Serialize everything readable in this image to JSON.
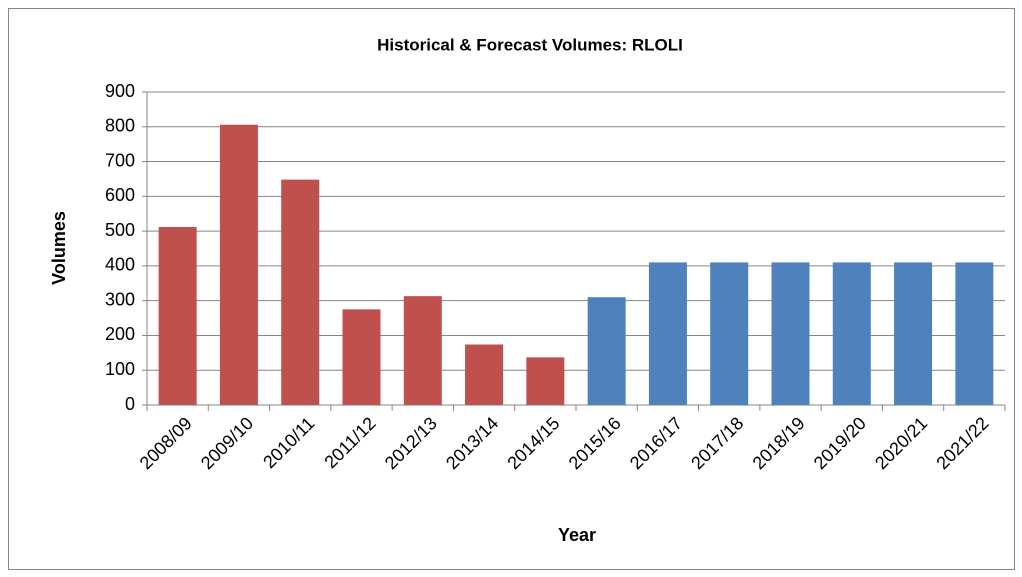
{
  "chart_data": {
    "type": "bar",
    "title": "Historical & Forecast Volumes: RLOLI",
    "xlabel": "Year",
    "ylabel": "Volumes",
    "categories": [
      "2008/09",
      "2009/10",
      "2010/11",
      "2011/12",
      "2012/13",
      "2013/14",
      "2014/15",
      "2015/16",
      "2016/17",
      "2017/18",
      "2018/19",
      "2019/20",
      "2020/21",
      "2021/22"
    ],
    "values": [
      512,
      806,
      648,
      275,
      313,
      174,
      137,
      310,
      410,
      410,
      410,
      410,
      410,
      410
    ],
    "colors": [
      "#c0504d",
      "#c0504d",
      "#c0504d",
      "#c0504d",
      "#c0504d",
      "#c0504d",
      "#c0504d",
      "#4f81bd",
      "#4f81bd",
      "#4f81bd",
      "#4f81bd",
      "#4f81bd",
      "#4f81bd",
      "#4f81bd"
    ],
    "ylim": [
      0,
      900
    ],
    "yticks": [
      0,
      100,
      200,
      300,
      400,
      500,
      600,
      700,
      800,
      900
    ],
    "grid": true
  }
}
